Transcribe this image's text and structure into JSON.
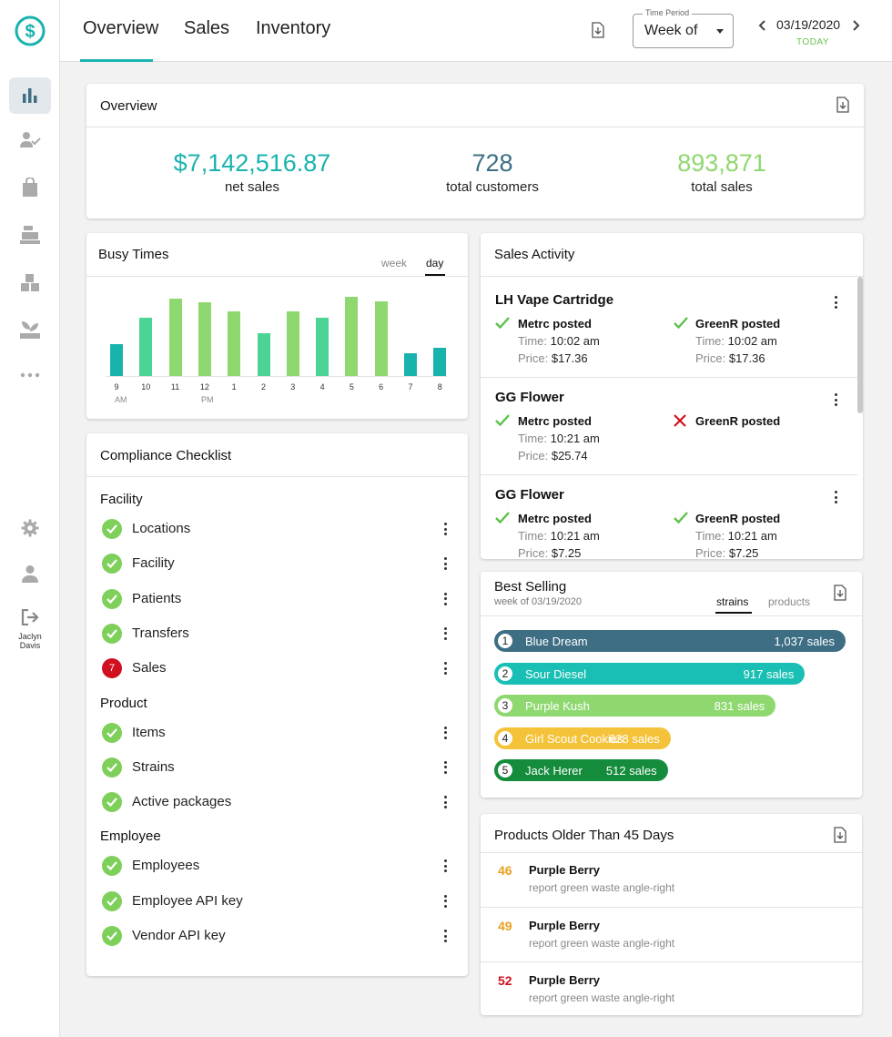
{
  "colors": {
    "teal": "#19b3ae",
    "green": "#7ed05a",
    "navy": "#3d6e84",
    "orange": "#e9a020",
    "red": "#d0101e"
  },
  "sidebar": {
    "user_first": "Jaclyn",
    "user_last": "Davis",
    "icons": [
      "dollar-logo-icon",
      "bar-chart-icon",
      "user-check-icon",
      "shopping-bag-icon",
      "cash-register-icon",
      "boxes-icon",
      "plant-icon",
      "more-horizontal-icon",
      "gear-icon",
      "user-icon",
      "sign-out-icon"
    ]
  },
  "header": {
    "tabs": [
      "Overview",
      "Sales",
      "Inventory"
    ],
    "period_label": "Time Period",
    "period_value": "Week of",
    "date": "03/19/2020",
    "today": "TODAY"
  },
  "overview": {
    "title": "Overview",
    "net_sales_value": "$7,142,516.87",
    "net_sales_label": "net sales",
    "customers_value": "728",
    "customers_label": "total customers",
    "total_sales_value": "893,871",
    "total_sales_label": "total sales"
  },
  "busy": {
    "title": "Busy Times",
    "tab_week": "week",
    "tab_day": "day",
    "am": "AM",
    "pm": "PM"
  },
  "chart_data": {
    "type": "bar",
    "title": "Busy Times",
    "categories": [
      "9",
      "10",
      "11",
      "12",
      "1",
      "2",
      "3",
      "4",
      "5",
      "6",
      "7",
      "8"
    ],
    "values": [
      37,
      67,
      90,
      85,
      75,
      49,
      75,
      67,
      92,
      86,
      26,
      33
    ],
    "ylim": [
      0,
      100
    ],
    "grid": false
  },
  "compliance": {
    "title": "Compliance Checklist",
    "sections": [
      {
        "name": "Facility",
        "items": [
          {
            "label": "Locations",
            "status": "ok"
          },
          {
            "label": "Facility",
            "status": "ok"
          },
          {
            "label": "Patients",
            "status": "ok"
          },
          {
            "label": "Transfers",
            "status": "ok"
          },
          {
            "label": "Sales",
            "status": "error",
            "count": "7"
          }
        ]
      },
      {
        "name": "Product",
        "items": [
          {
            "label": "Items",
            "status": "ok"
          },
          {
            "label": "Strains",
            "status": "ok"
          },
          {
            "label": "Active packages",
            "status": "ok"
          }
        ]
      },
      {
        "name": "Employee",
        "items": [
          {
            "label": "Employees",
            "status": "ok"
          },
          {
            "label": "Employee API key",
            "status": "ok"
          },
          {
            "label": "Vendor API key",
            "status": "ok"
          }
        ]
      }
    ]
  },
  "sales_activity": {
    "title": "Sales Activity",
    "time_label": "Time:",
    "price_label": "Price:",
    "entries": [
      {
        "product": "LH Vape Cartridge",
        "metrc": {
          "label": "Metrc posted",
          "ok": true,
          "time": "10:02 am",
          "price": "$17.36"
        },
        "greenr": {
          "label": "GreenR posted",
          "ok": true,
          "time": "10:02 am",
          "price": "$17.36"
        }
      },
      {
        "product": "GG Flower",
        "metrc": {
          "label": "Metrc posted",
          "ok": true,
          "time": "10:21 am",
          "price": "$25.74"
        },
        "greenr": {
          "label": "GreenR posted",
          "ok": false
        }
      },
      {
        "product": "GG Flower",
        "metrc": {
          "label": "Metrc posted",
          "ok": true,
          "time": "10:21 am",
          "price": "$7.25"
        },
        "greenr": {
          "label": "GreenR posted",
          "ok": true,
          "time": "10:21 am",
          "price": "$7.25"
        }
      }
    ]
  },
  "best_selling": {
    "title": "Best Selling",
    "subtitle": "week of 03/19/2020",
    "tab_strains": "strains",
    "tab_products": "products",
    "items": [
      {
        "rank": "1",
        "name": "Blue Dream",
        "sales": "1,037 sales",
        "value": 1037,
        "color": "#3d6e84"
      },
      {
        "rank": "2",
        "name": "Sour Diesel",
        "sales": "917 sales",
        "value": 917,
        "color": "#19bfb4"
      },
      {
        "rank": "3",
        "name": "Purple Kush",
        "sales": "831 sales",
        "value": 831,
        "color": "#8fd870"
      },
      {
        "rank": "4",
        "name": "Girl Scout Cookies",
        "sales": "628 sales",
        "value": 628,
        "color": "#f5c33a"
      },
      {
        "rank": "5",
        "name": "Jack Herer",
        "sales": "512 sales",
        "value": 512,
        "color": "#148c3c"
      }
    ]
  },
  "older": {
    "title": "Products Older Than 45 Days",
    "items": [
      {
        "days": "46",
        "name": "Purple Berry",
        "action": "report green waste  angle-right",
        "color": "#e9a020"
      },
      {
        "days": "49",
        "name": "Purple Berry",
        "action": "report green waste  angle-right",
        "color": "#e9a020"
      },
      {
        "days": "52",
        "name": "Purple Berry",
        "action": "report green waste  angle-right",
        "color": "#d0101e"
      }
    ]
  }
}
